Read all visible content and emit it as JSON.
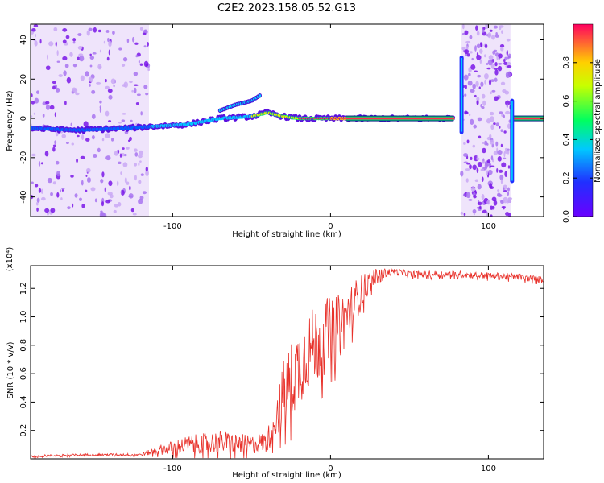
{
  "title": "C2E2.2023.158.05.52.G13",
  "colors": {
    "snr_line": "#e8312a",
    "noise_bands": "#e2cdf7",
    "spectrogram_ridge": [
      "#6a00ff",
      "#0064ff",
      "#00c8ff",
      "#00ff60",
      "#ffe000",
      "#ff2a4e"
    ]
  },
  "chart_data": [
    {
      "type": "heatmap",
      "description_of_axes": "spectrogram",
      "xlabel": "Height of straight line (km)",
      "ylabel": "Frequency (Hz)",
      "xlim": [
        -190,
        135
      ],
      "ylim": [
        -50,
        48
      ],
      "xticks": [
        -100,
        0,
        100
      ],
      "yticks": [
        -40,
        -20,
        0,
        20,
        40
      ],
      "colorbar": {
        "label": "Normalized spectral amplitude",
        "range": [
          0.0,
          1.0
        ],
        "ticks": [
          "0.0",
          "0.2",
          "0.4",
          "0.6",
          "0.8"
        ],
        "colormap": "rainbow (purple → blue → cyan → green → yellow → red)"
      },
      "noise_regions_km": [
        [
          -190,
          -115
        ],
        [
          83,
          114
        ]
      ],
      "ridge": {
        "x": [
          -190,
          -160,
          -130,
          -110,
          -90,
          -70,
          -50,
          -40,
          -30,
          -20,
          -10,
          0,
          10,
          20,
          40,
          60,
          78
        ],
        "y": [
          -5,
          -6,
          -5,
          -4,
          -3,
          0,
          1,
          3,
          1,
          0,
          0,
          0,
          0,
          0,
          0,
          0,
          0
        ],
        "amplitude": [
          0.25,
          0.3,
          0.35,
          0.45,
          0.55,
          0.6,
          0.7,
          0.8,
          0.85,
          0.9,
          0.95,
          1.0,
          1.0,
          1.0,
          1.0,
          1.0,
          1.0
        ]
      },
      "branch": {
        "x": [
          -70,
          -60,
          -50,
          -44
        ],
        "y": [
          4,
          7,
          9,
          12
        ]
      },
      "ridge_after_gap": {
        "x": [
          115,
          135
        ],
        "y": [
          0,
          0
        ]
      }
    },
    {
      "type": "line",
      "xlabel": "Height of straight line (km)",
      "ylabel": "SNR (10 * v/v)",
      "y_multiplier": "(x10⁴)",
      "xlim": [
        -190,
        135
      ],
      "ylim": [
        0,
        1.36
      ],
      "xticks": [
        -100,
        0,
        100
      ],
      "yticks": [
        0.2,
        0.4,
        0.6,
        0.8,
        1.0,
        1.2
      ],
      "series": [
        {
          "x": [
            -190,
            -150,
            -120,
            -110,
            -100,
            -90,
            -80,
            -70,
            -60,
            -50,
            -40,
            -35,
            -30,
            -25,
            -20,
            -15,
            -10,
            -5,
            0,
            5,
            10,
            15,
            20,
            25,
            30,
            40,
            50,
            60,
            80,
            100,
            120,
            135
          ],
          "y": [
            0.02,
            0.03,
            0.03,
            0.06,
            0.08,
            0.1,
            0.11,
            0.12,
            0.11,
            0.1,
            0.12,
            0.3,
            0.45,
            0.55,
            0.65,
            0.75,
            0.8,
            0.85,
            0.9,
            0.92,
            1.0,
            1.1,
            1.18,
            1.25,
            1.3,
            1.32,
            1.3,
            1.3,
            1.3,
            1.29,
            1.28,
            1.26
          ],
          "noise": [
            0.01,
            0.01,
            0.01,
            0.04,
            0.06,
            0.08,
            0.09,
            0.1,
            0.09,
            0.08,
            0.1,
            0.2,
            0.3,
            0.35,
            0.35,
            0.35,
            0.35,
            0.35,
            0.3,
            0.3,
            0.25,
            0.2,
            0.15,
            0.1,
            0.05,
            0.03,
            0.03,
            0.03,
            0.03,
            0.03,
            0.03,
            0.03
          ]
        }
      ]
    }
  ]
}
